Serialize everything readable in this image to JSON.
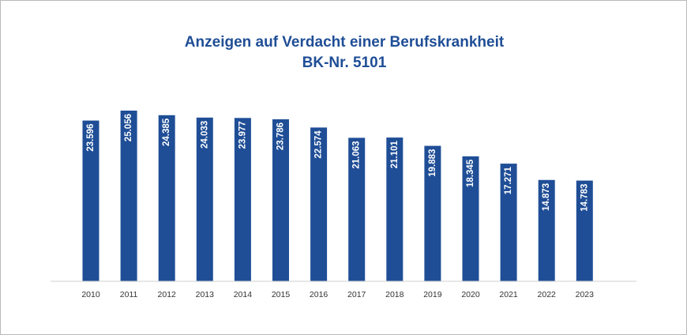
{
  "chart_data": {
    "type": "bar",
    "title": "Anzeigen auf Verdacht einer Berufskrankheit",
    "subtitle": "BK-Nr. 5101",
    "categories": [
      "2010",
      "2011",
      "2012",
      "2013",
      "2014",
      "2015",
      "2016",
      "2017",
      "2018",
      "2019",
      "2020",
      "2021",
      "2022",
      "2023"
    ],
    "values": [
      23596,
      25056,
      24385,
      24033,
      23977,
      23786,
      22574,
      21063,
      21101,
      19883,
      18345,
      17271,
      14873,
      14783
    ],
    "value_labels": [
      "23.596",
      "25.056",
      "24.385",
      "24.033",
      "23.977",
      "23.786",
      "22.574",
      "21.063",
      "21.101",
      "19.883",
      "18.345",
      "17.271",
      "14.873",
      "14.783"
    ],
    "ylim": [
      0,
      25056
    ],
    "grid": false,
    "bar_color": "#1f4e96",
    "xlabel": "",
    "ylabel": ""
  }
}
